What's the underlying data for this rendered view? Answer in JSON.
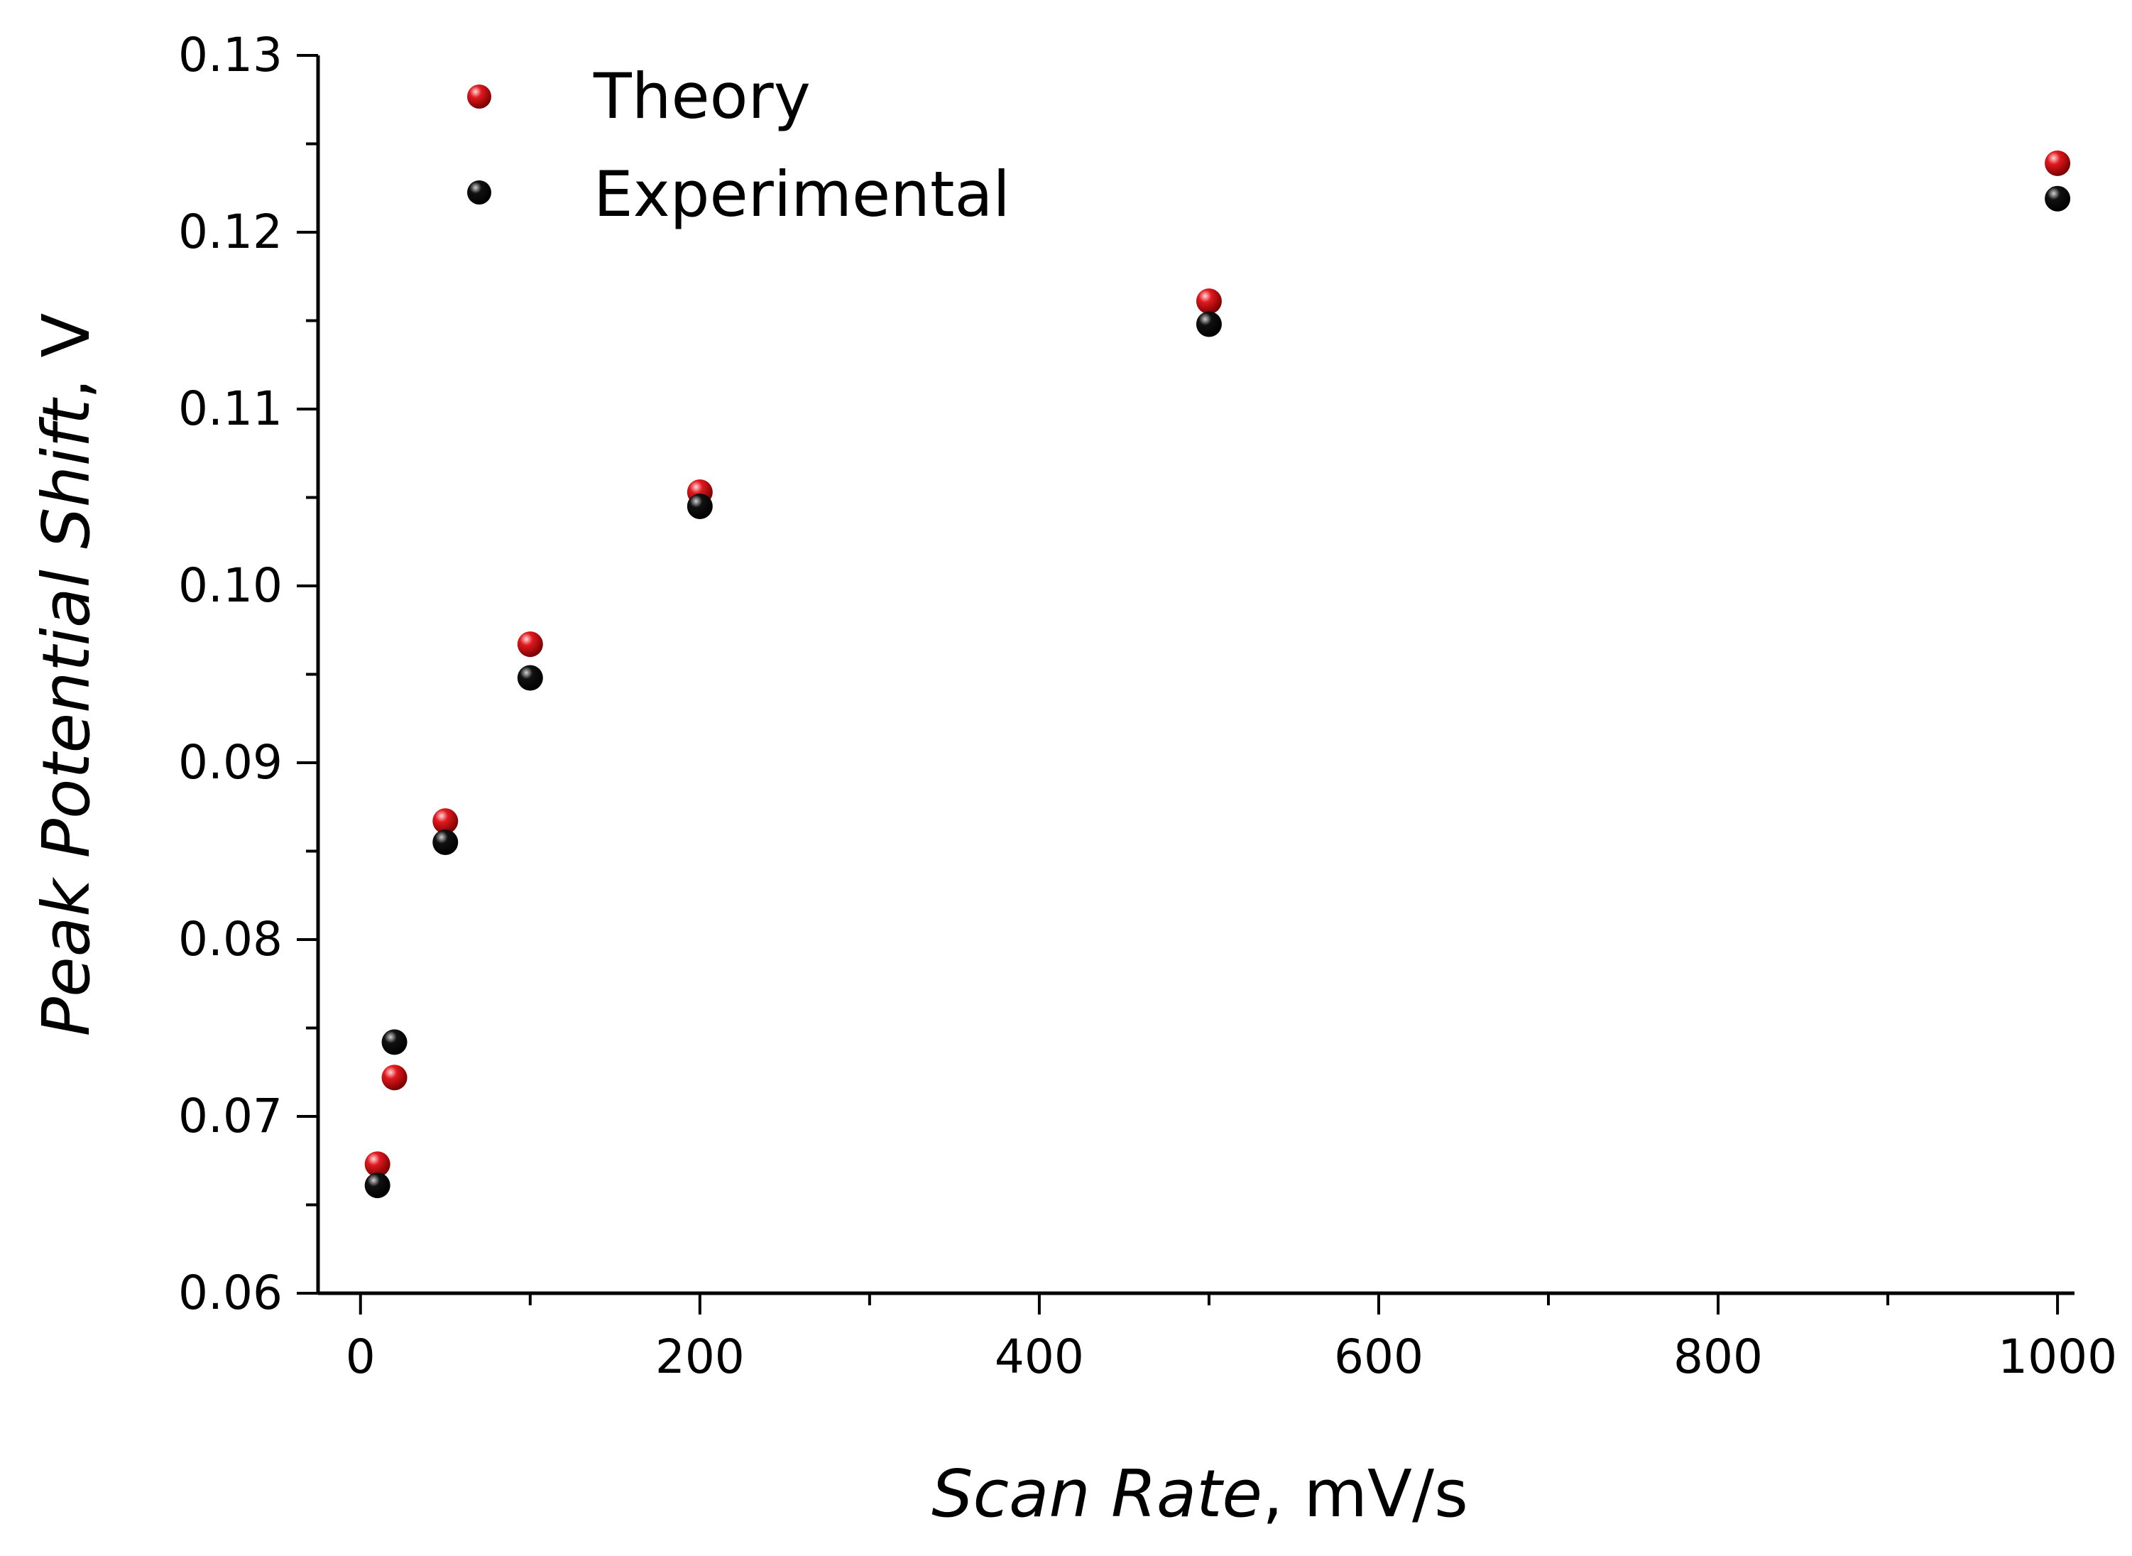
{
  "chart_data": {
    "type": "scatter",
    "title": "",
    "xlabel": {
      "italic": "Scan Rate",
      "suffix": ", mV/s"
    },
    "ylabel": {
      "italic": "Peak Potential Shift",
      "suffix": ", V"
    },
    "xlim": [
      -25,
      1010
    ],
    "ylim": [
      0.06,
      0.13
    ],
    "xticks": [
      "0",
      "200",
      "400",
      "600",
      "800",
      "1000"
    ],
    "yticks": [
      "0.06",
      "0.07",
      "0.08",
      "0.09",
      "0.10",
      "0.11",
      "0.12",
      "0.13"
    ],
    "grid": false,
    "legend_position": "top-left",
    "series": [
      {
        "name": "Theory",
        "color": "#e0191f",
        "x": [
          10,
          20,
          50,
          100,
          200,
          500,
          1000
        ],
        "y": [
          0.0673,
          0.0722,
          0.0867,
          0.0967,
          0.1053,
          0.1161,
          0.1239
        ]
      },
      {
        "name": "Experimental",
        "color": "#111111",
        "x": [
          10,
          20,
          50,
          100,
          200,
          500,
          1000
        ],
        "y": [
          0.0661,
          0.0742,
          0.0855,
          0.0948,
          0.1045,
          0.1148,
          0.1219
        ]
      }
    ]
  }
}
